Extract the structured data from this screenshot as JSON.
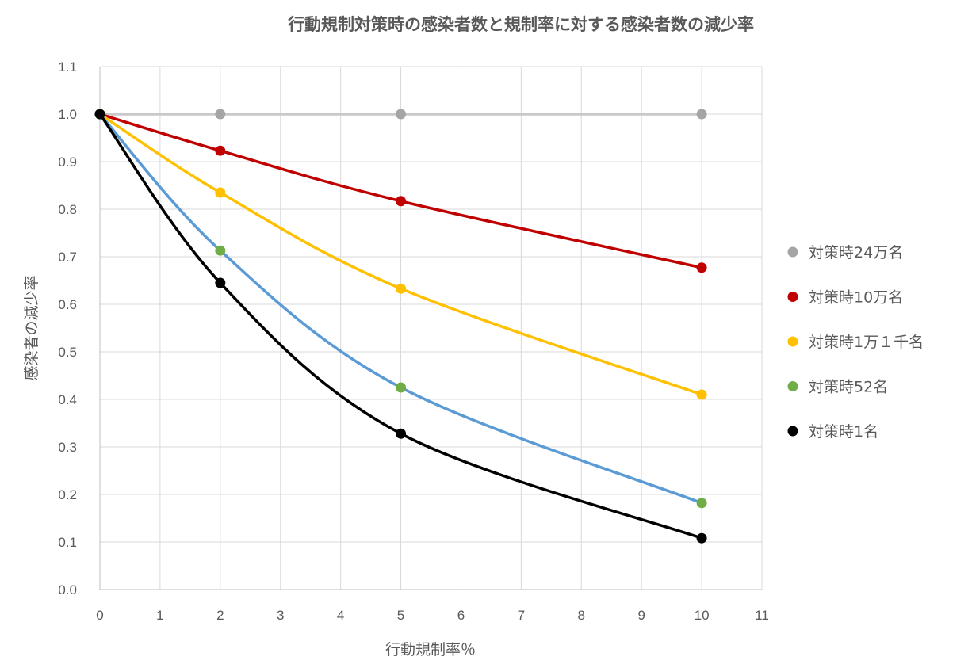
{
  "chart_data": {
    "type": "line",
    "title": "行動規制対策時の感染者数と規制率に対する感染者数の減少率",
    "xlabel": "行動規制率％",
    "ylabel": "感染者の減少率",
    "xlim": [
      0,
      11
    ],
    "ylim": [
      0,
      1.1
    ],
    "x_ticks": [
      "0",
      "1",
      "2",
      "3",
      "4",
      "5",
      "6",
      "7",
      "8",
      "9",
      "10",
      "11"
    ],
    "y_ticks": [
      "0.0",
      "0.1",
      "0.2",
      "0.3",
      "0.4",
      "0.5",
      "0.6",
      "0.7",
      "0.8",
      "0.9",
      "1.0",
      "1.1"
    ],
    "grid": true,
    "legend_position": "right",
    "x": [
      0,
      2,
      5,
      10
    ],
    "series": [
      {
        "name": "対策時24万名",
        "values": [
          1.0,
          1.0,
          1.0,
          1.0
        ],
        "line_color": "#C9C9C9",
        "marker_color": "#A5A5A5"
      },
      {
        "name": "対策時10万名",
        "values": [
          1.0,
          0.923,
          0.817,
          0.677
        ],
        "line_color": "#C00000",
        "marker_color": "#C00000"
      },
      {
        "name": "対策時1万１千名",
        "values": [
          1.0,
          0.835,
          0.633,
          0.41
        ],
        "line_color": "#FFC000",
        "marker_color": "#FFC000"
      },
      {
        "name": "対策時52名",
        "values": [
          1.0,
          0.713,
          0.425,
          0.182
        ],
        "line_color": "#5B9BD5",
        "marker_color": "#70AD47"
      },
      {
        "name": "対策時1名",
        "values": [
          1.0,
          0.645,
          0.328,
          0.108
        ],
        "line_color": "#000000",
        "marker_color": "#000000"
      }
    ]
  }
}
